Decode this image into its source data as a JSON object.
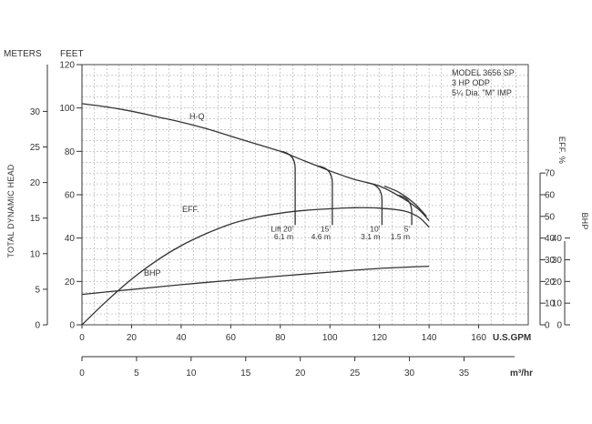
{
  "chart_data": {
    "type": "line",
    "model_text": [
      "MODEL 3656 SP",
      "3 HP ODP",
      "5¼ Dia. \"M\" IMP"
    ],
    "y_left_title": "TOTAL DYNAMIC HEAD",
    "y_meters_unit": "METERS",
    "y_feet_unit": "FEET",
    "x_gpm_unit": "U.S.GPM",
    "x_m3_unit": "m³/hr",
    "eff_axis_title": "EFF. %",
    "bhp_axis_title": "BHP",
    "x_gpm_ticks": [
      "0",
      "20",
      "40",
      "60",
      "80",
      "100",
      "120",
      "140",
      "160"
    ],
    "x_m3_ticks": [
      "0",
      "5",
      "10",
      "15",
      "20",
      "25",
      "30",
      "35"
    ],
    "y_feet_ticks": [
      "0",
      "20",
      "40",
      "60",
      "80",
      "100",
      "120"
    ],
    "y_meters_ticks": [
      "0",
      "5",
      "10",
      "15",
      "20",
      "25",
      "30"
    ],
    "eff_ticks": [
      "0",
      "10",
      "20",
      "30",
      "40",
      "50",
      "60",
      "70"
    ],
    "bhp_ticks": [
      "0",
      "10",
      "20",
      "30",
      "40"
    ],
    "xlim_gpm": [
      0,
      180
    ],
    "ylim_feet": [
      0,
      120
    ],
    "series": [
      {
        "name": "H-Q",
        "x": [
          0,
          10,
          20,
          30,
          40,
          50,
          60,
          70,
          80,
          90,
          100,
          110,
          120,
          130,
          136,
          140
        ],
        "y": [
          102,
          100.5,
          98.5,
          96,
          93.5,
          90.5,
          87,
          83.5,
          80,
          75.5,
          71,
          67,
          64,
          58,
          53,
          48
        ]
      },
      {
        "name": "EFF.",
        "x": [
          0,
          10,
          20,
          30,
          40,
          50,
          60,
          70,
          80,
          90,
          100,
          110,
          120,
          130,
          136,
          140
        ],
        "y": [
          0,
          11,
          21,
          29.5,
          36.5,
          42,
          46.5,
          49.5,
          51.5,
          52.8,
          53.5,
          54,
          53.8,
          52.5,
          49.5,
          45
        ]
      },
      {
        "name": "BHP",
        "x": [
          0,
          20,
          40,
          60,
          80,
          100,
          120,
          140
        ],
        "y": [
          14,
          16.3,
          18.5,
          20.5,
          22.5,
          24.3,
          26,
          27
        ]
      }
    ],
    "lift_lines": [
      {
        "label": "Lift 20'",
        "sub": "6.1 m",
        "x": 86
      },
      {
        "label": "15'",
        "sub": "4.6 m",
        "x": 101
      },
      {
        "label": "10'",
        "sub": "3.1 m",
        "x": 121
      },
      {
        "label": "5'",
        "sub": "1.5 m",
        "x": 133
      }
    ],
    "grid": true
  }
}
